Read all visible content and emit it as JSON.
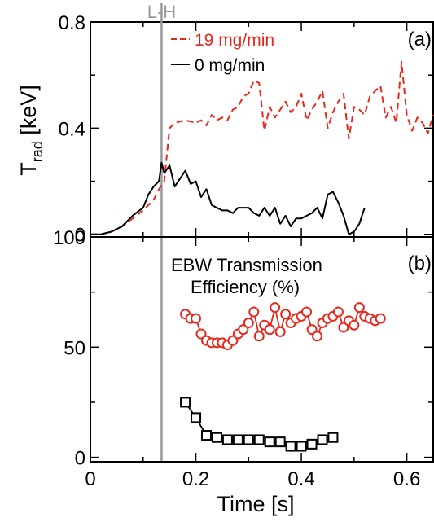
{
  "chart_data": [
    {
      "type": "line",
      "panel_label": "(a)",
      "ylabel": "T",
      "ylabel_sub": "rad",
      "ylabel_unit": " [keV]",
      "xlim": [
        0,
        0.65
      ],
      "ylim": [
        -0.01,
        0.8
      ],
      "yticks": [
        {
          "v": 0,
          "label": "0"
        },
        {
          "v": 0.4,
          "label": "0.4"
        },
        {
          "v": 0.8,
          "label": "0.8"
        }
      ],
      "yminor": [
        0.2,
        0.6
      ],
      "vline": {
        "x": 0.135,
        "label": "L-H",
        "color": "#999999"
      },
      "series": [
        {
          "name": "19 mg/min",
          "color": "#e8271c",
          "style": "dashed",
          "x": [
            0,
            0.01,
            0.02,
            0.04,
            0.06,
            0.08,
            0.1,
            0.12,
            0.13,
            0.14,
            0.15,
            0.16,
            0.18,
            0.2,
            0.21,
            0.22,
            0.23,
            0.24,
            0.25,
            0.26,
            0.27,
            0.28,
            0.29,
            0.3,
            0.31,
            0.32,
            0.33,
            0.34,
            0.35,
            0.36,
            0.37,
            0.38,
            0.39,
            0.4,
            0.41,
            0.42,
            0.43,
            0.44,
            0.45,
            0.46,
            0.47,
            0.48,
            0.49,
            0.5,
            0.51,
            0.52,
            0.53,
            0.54,
            0.55,
            0.56,
            0.57,
            0.58,
            0.59,
            0.6,
            0.61,
            0.62,
            0.63,
            0.64,
            0.65
          ],
          "y": [
            0,
            0,
            0,
            0.01,
            0.03,
            0.06,
            0.09,
            0.13,
            0.17,
            0.2,
            0.4,
            0.42,
            0.43,
            0.42,
            0.43,
            0.41,
            0.45,
            0.43,
            0.44,
            0.43,
            0.47,
            0.48,
            0.52,
            0.53,
            0.58,
            0.57,
            0.39,
            0.48,
            0.44,
            0.47,
            0.5,
            0.46,
            0.48,
            0.53,
            0.43,
            0.47,
            0.5,
            0.54,
            0.4,
            0.46,
            0.5,
            0.53,
            0.36,
            0.48,
            0.47,
            0.45,
            0.52,
            0.54,
            0.56,
            0.44,
            0.48,
            0.42,
            0.65,
            0.45,
            0.39,
            0.44,
            0.42,
            0.38,
            0.45
          ]
        },
        {
          "name": "0 mg/min",
          "color": "#000000",
          "style": "solid",
          "x": [
            0,
            0.02,
            0.04,
            0.06,
            0.08,
            0.1,
            0.11,
            0.12,
            0.13,
            0.135,
            0.14,
            0.15,
            0.16,
            0.17,
            0.18,
            0.19,
            0.2,
            0.21,
            0.22,
            0.23,
            0.24,
            0.25,
            0.26,
            0.27,
            0.28,
            0.29,
            0.3,
            0.31,
            0.32,
            0.33,
            0.34,
            0.35,
            0.36,
            0.37,
            0.38,
            0.39,
            0.4,
            0.41,
            0.42,
            0.43,
            0.44,
            0.45,
            0.46,
            0.47,
            0.48,
            0.49,
            0.5,
            0.51,
            0.52
          ],
          "y": [
            0,
            0,
            0.01,
            0.03,
            0.07,
            0.1,
            0.15,
            0.18,
            0.2,
            0.27,
            0.23,
            0.26,
            0.18,
            0.21,
            0.24,
            0.19,
            0.2,
            0.14,
            0.17,
            0.11,
            0.1,
            0.09,
            0.09,
            0.08,
            0.1,
            0.1,
            0.1,
            0.08,
            0.07,
            0.1,
            0.07,
            0.1,
            0.04,
            0.07,
            0.03,
            0.06,
            0.06,
            0.07,
            0.08,
            0.1,
            0.06,
            0.15,
            0.16,
            0.12,
            0.07,
            0,
            0.01,
            0.04,
            0.1
          ]
        }
      ]
    },
    {
      "type": "line",
      "panel_label": "(b)",
      "annotation": [
        "EBW Transmission",
        "Efficiency (%)"
      ],
      "xlabel": "Time [s]",
      "xlim": [
        0,
        0.65
      ],
      "ylim": [
        -2,
        100
      ],
      "xticks": [
        {
          "v": 0,
          "label": "0"
        },
        {
          "v": 0.2,
          "label": "0.2"
        },
        {
          "v": 0.4,
          "label": "0.4"
        },
        {
          "v": 0.6,
          "label": "0.6"
        }
      ],
      "xminor": [
        0.1,
        0.3,
        0.5
      ],
      "yticks": [
        {
          "v": 0,
          "label": "0"
        },
        {
          "v": 50,
          "label": "50"
        },
        {
          "v": 100,
          "label": "100"
        }
      ],
      "yminor": [
        25,
        75
      ],
      "vline": {
        "x": 0.135,
        "color": "#999999"
      },
      "series": [
        {
          "name": "19 mg/min",
          "color": "#e8271c",
          "marker": "circle",
          "x": [
            0.18,
            0.19,
            0.2,
            0.21,
            0.22,
            0.23,
            0.24,
            0.25,
            0.26,
            0.27,
            0.28,
            0.29,
            0.3,
            0.31,
            0.32,
            0.33,
            0.34,
            0.35,
            0.36,
            0.37,
            0.38,
            0.39,
            0.4,
            0.41,
            0.42,
            0.43,
            0.44,
            0.45,
            0.46,
            0.47,
            0.48,
            0.49,
            0.5,
            0.51,
            0.52,
            0.53,
            0.54,
            0.55
          ],
          "y": [
            65,
            63,
            63,
            56,
            53,
            52,
            52,
            52,
            51,
            53,
            56,
            58,
            61,
            66,
            55,
            60,
            58,
            68,
            57,
            65,
            61,
            63,
            64,
            66,
            58,
            55,
            61,
            63,
            64,
            66,
            59,
            62,
            60,
            68,
            64,
            63,
            62,
            63
          ]
        },
        {
          "name": "0 mg/min",
          "color": "#000000",
          "marker": "square",
          "x": [
            0.18,
            0.2,
            0.22,
            0.24,
            0.26,
            0.28,
            0.3,
            0.32,
            0.34,
            0.36,
            0.38,
            0.4,
            0.42,
            0.44,
            0.46
          ],
          "y": [
            25,
            18,
            10,
            9,
            8,
            8,
            8,
            8,
            7,
            7,
            5,
            5,
            6,
            8,
            9
          ]
        }
      ]
    }
  ],
  "legend": [
    {
      "label": "19 mg/min",
      "color": "#e8271c",
      "style": "dashed"
    },
    {
      "label": "0 mg/min",
      "color": "#000000",
      "style": "solid"
    }
  ]
}
